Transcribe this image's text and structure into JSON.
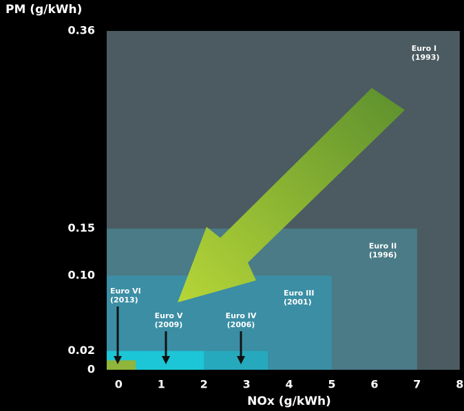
{
  "chart_data": {
    "type": "rectangle",
    "y_label": "PM (g/kWh)",
    "x_label": "NOx (g/kWh)",
    "xlim": [
      -0.28,
      8.1
    ],
    "ylim": [
      0,
      0.36
    ],
    "xticks": [
      0,
      1,
      2,
      3,
      4,
      5,
      6,
      7,
      8
    ],
    "yticks": [
      0,
      0.02,
      {
        "value": 0.1,
        "label": "0.10"
      },
      0.15,
      0.36
    ],
    "series": [
      {
        "name": "Euro I",
        "year": "(1993)",
        "color": "#4b5b61",
        "nox": 8,
        "pm": 0.36
      },
      {
        "name": "Euro II",
        "year": "(1996)",
        "color": "#4a7b87",
        "nox": 7,
        "pm": 0.15
      },
      {
        "name": "Euro III",
        "year": "(2001)",
        "color": "#3b8ea4",
        "nox": 5,
        "pm": 0.1
      },
      {
        "name": "Euro IV",
        "year": "(2006)",
        "color": "#26a9bd",
        "nox": 3.5,
        "pm": 0.02
      },
      {
        "name": "Euro V",
        "year": "(2009)",
        "color": "#1cc6d6",
        "nox": 2,
        "pm": 0.02
      },
      {
        "name": "Euro VI",
        "year": "(2013)",
        "color": "#8fb53a",
        "nox": 0.4,
        "pm": 0.01
      }
    ]
  }
}
